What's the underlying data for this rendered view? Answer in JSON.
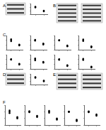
{
  "panel_labels": [
    "A",
    "B",
    "C",
    "D",
    "E",
    "F"
  ],
  "chart_data": [
    {
      "type": "scatter",
      "x": [
        1,
        1,
        1,
        2,
        2,
        2
      ],
      "values": [
        1.0,
        1.05,
        0.95,
        0.45,
        0.5,
        0.4
      ],
      "xlim": [
        0.5,
        2.5
      ],
      "xticks": [
        1,
        2
      ],
      "ylim": [
        0,
        1.5
      ],
      "yticks": [
        0,
        0.5,
        1,
        1.5
      ],
      "color": "#000000",
      "marker": "circle",
      "grid": false,
      "tick_labels": false
    },
    {
      "type": "scatter",
      "x": [
        1,
        1,
        1,
        2,
        2,
        2
      ],
      "values": [
        1.0,
        1.1,
        0.9,
        0.5,
        0.55,
        0.45
      ],
      "xlim": [
        0.5,
        2.5
      ],
      "xticks": [
        1,
        2
      ],
      "ylim": [
        0,
        1.5
      ],
      "yticks": [
        0,
        0.5,
        1,
        1.5
      ],
      "color": "#000000",
      "marker": "circle",
      "grid": false,
      "tick_labels": false
    },
    {
      "type": "scatter",
      "x": [
        1,
        1,
        1,
        2,
        2,
        2
      ],
      "values": [
        1.0,
        0.95,
        1.05,
        0.6,
        0.65,
        0.55
      ],
      "xlim": [
        0.5,
        2.5
      ],
      "xticks": [
        1,
        2
      ],
      "ylim": [
        0,
        1.5
      ],
      "yticks": [
        0,
        0.5,
        1,
        1.5
      ],
      "color": "#000000",
      "marker": "circle",
      "grid": false,
      "tick_labels": false
    },
    {
      "type": "scatter",
      "x": [
        1,
        1,
        1,
        2,
        2,
        2
      ],
      "values": [
        1.0,
        1.02,
        0.98,
        0.4,
        0.35,
        0.45
      ],
      "xlim": [
        0.5,
        2.5
      ],
      "xticks": [
        1,
        2
      ],
      "ylim": [
        0,
        1.5
      ],
      "yticks": [
        0,
        0.5,
        1,
        1.5
      ],
      "color": "#000000",
      "marker": "circle",
      "grid": false,
      "tick_labels": false
    },
    {
      "type": "scatter",
      "x": [
        1,
        1,
        1,
        2,
        2,
        2
      ],
      "values": [
        1.0,
        1.08,
        0.92,
        0.3,
        0.35,
        0.25
      ],
      "xlim": [
        0.5,
        2.5
      ],
      "xticks": [
        1,
        2
      ],
      "ylim": [
        0,
        1.5
      ],
      "yticks": [
        0,
        0.5,
        1,
        1.5
      ],
      "color": "#000000",
      "marker": "circle",
      "grid": false,
      "tick_labels": false
    },
    {
      "type": "scatter",
      "x": [
        1,
        1,
        1,
        2,
        2,
        2
      ],
      "values": [
        1.0,
        0.97,
        1.03,
        0.5,
        0.45,
        0.55
      ],
      "xlim": [
        0.5,
        2.5
      ],
      "xticks": [
        1,
        2
      ],
      "ylim": [
        0,
        1.5
      ],
      "yticks": [
        0,
        0.5,
        1,
        1.5
      ],
      "color": "#000000",
      "marker": "circle",
      "grid": false,
      "tick_labels": false
    },
    {
      "type": "scatter",
      "x": [
        1,
        1,
        1,
        2,
        2,
        2
      ],
      "values": [
        1.0,
        1.1,
        0.9,
        0.7,
        0.65,
        0.75
      ],
      "xlim": [
        0.5,
        2.5
      ],
      "xticks": [
        1,
        2
      ],
      "ylim": [
        0,
        1.5
      ],
      "yticks": [
        0,
        0.5,
        1,
        1.5
      ],
      "color": "#000000",
      "marker": "circle",
      "grid": false,
      "tick_labels": false
    },
    {
      "type": "scatter",
      "x": [
        1,
        1,
        1,
        2,
        2,
        2
      ],
      "values": [
        1.0,
        1.04,
        0.96,
        0.35,
        0.4,
        0.3
      ],
      "xlim": [
        0.5,
        2.5
      ],
      "xticks": [
        1,
        2
      ],
      "ylim": [
        0,
        1.5
      ],
      "yticks": [
        0,
        0.5,
        1,
        1.5
      ],
      "color": "#000000",
      "marker": "circle",
      "grid": false,
      "tick_labels": false
    },
    {
      "type": "scatter",
      "x": [
        1,
        1,
        1,
        2,
        2,
        2
      ],
      "values": [
        1.0,
        0.94,
        1.06,
        0.2,
        0.25,
        0.15
      ],
      "xlim": [
        0.5,
        2.5
      ],
      "xticks": [
        1,
        2
      ],
      "ylim": [
        0,
        1.5
      ],
      "yticks": [
        0,
        0.5,
        1,
        1.5
      ],
      "color": "#000000",
      "marker": "circle",
      "grid": false,
      "tick_labels": false
    },
    {
      "type": "scatter",
      "x": [
        1,
        1,
        1,
        2,
        2,
        2
      ],
      "values": [
        1.0,
        1.05,
        0.95,
        0.5,
        0.45,
        0.55
      ],
      "xlim": [
        0.5,
        2.5
      ],
      "xticks": [
        1,
        2
      ],
      "ylim": [
        0,
        1.5
      ],
      "yticks": [
        0,
        0.5,
        1,
        1.5
      ],
      "color": "#000000",
      "marker": "circle",
      "grid": false,
      "tick_labels": false
    },
    {
      "type": "scatter",
      "x": [
        1,
        1,
        1,
        2,
        2,
        2
      ],
      "values": [
        1.0,
        1.1,
        0.9,
        0.55,
        0.6,
        0.5
      ],
      "xlim": [
        0.5,
        2.5
      ],
      "xticks": [
        1,
        2
      ],
      "ylim": [
        0,
        1.5
      ],
      "yticks": [
        0,
        0.5,
        1,
        1.5
      ],
      "color": "#000000",
      "marker": "circle",
      "grid": false,
      "tick_labels": false
    },
    {
      "type": "scatter",
      "x": [
        1,
        1,
        1,
        2,
        2,
        2
      ],
      "values": [
        1.0,
        0.96,
        1.04,
        0.6,
        0.7,
        0.65
      ],
      "xlim": [
        0.5,
        2.5
      ],
      "xticks": [
        1,
        2
      ],
      "ylim": [
        0,
        1.5
      ],
      "yticks": [
        0,
        0.5,
        1,
        1.5
      ],
      "color": "#000000",
      "marker": "circle",
      "grid": false,
      "tick_labels": false
    },
    {
      "type": "scatter",
      "x": [
        1,
        1,
        1,
        2,
        2,
        2
      ],
      "values": [
        1.0,
        1.07,
        0.93,
        0.45,
        0.4,
        0.5
      ],
      "xlim": [
        0.5,
        2.5
      ],
      "xticks": [
        1,
        2
      ],
      "ylim": [
        0,
        1.5
      ],
      "yticks": [
        0,
        0.5,
        1,
        1.5
      ],
      "color": "#000000",
      "marker": "circle",
      "grid": false,
      "tick_labels": false
    },
    {
      "type": "scatter",
      "x": [
        1,
        1,
        1,
        2,
        2,
        2
      ],
      "values": [
        1.0,
        0.98,
        1.02,
        0.3,
        0.35,
        0.4
      ],
      "xlim": [
        0.5,
        2.5
      ],
      "xticks": [
        1,
        2
      ],
      "ylim": [
        0,
        1.5
      ],
      "yticks": [
        0,
        0.5,
        1,
        1.5
      ],
      "color": "#000000",
      "marker": "circle",
      "grid": false,
      "tick_labels": false
    },
    {
      "type": "scatter",
      "x": [
        1,
        1,
        1,
        2,
        2,
        2
      ],
      "values": [
        1.0,
        1.03,
        0.97,
        0.75,
        0.7,
        0.8
      ],
      "xlim": [
        0.5,
        2.5
      ],
      "xticks": [
        1,
        2
      ],
      "ylim": [
        0,
        1.5
      ],
      "yticks": [
        0,
        0.5,
        1,
        1.5
      ],
      "color": "#000000",
      "marker": "circle",
      "grid": false,
      "tick_labels": false
    }
  ]
}
